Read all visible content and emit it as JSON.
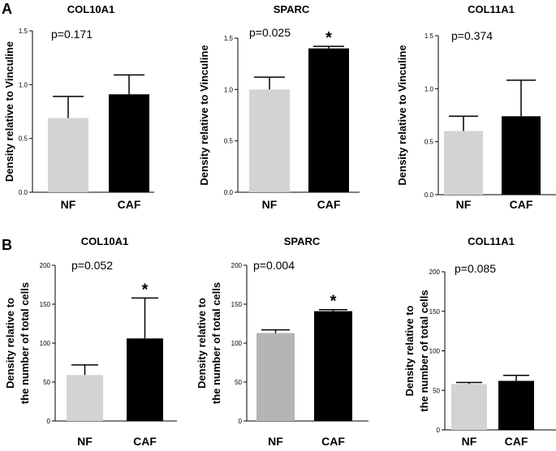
{
  "panels": {
    "a": "A",
    "b": "B"
  },
  "chart_data": [
    {
      "type": "bar",
      "panel": "A",
      "title": "COL10A1",
      "p_value": "p=0.171",
      "ylabel": "Density relative to Vinculine",
      "categories": [
        "NF",
        "CAF"
      ],
      "values": [
        0.69,
        0.91
      ],
      "errors": [
        0.2,
        0.18
      ],
      "colors": [
        "#d3d3d3",
        "#000000"
      ],
      "ylim": [
        0,
        1.5
      ],
      "yticks": [
        "0.0",
        "0.5",
        "1.0",
        "1.5"
      ],
      "tick_values": [
        0,
        0.5,
        1.0,
        1.5
      ],
      "stars": [
        "",
        ""
      ]
    },
    {
      "type": "bar",
      "panel": "A",
      "title": "SPARC",
      "p_value": "p=0.025",
      "ylabel": "Density relative to Vinculine",
      "categories": [
        "NF",
        "CAF"
      ],
      "values": [
        1.0,
        1.4
      ],
      "errors": [
        0.12,
        0.02
      ],
      "colors": [
        "#d3d3d3",
        "#000000"
      ],
      "ylim": [
        0,
        1.5
      ],
      "yticks": [
        "0.0",
        "0.5",
        "1.0",
        "1.5"
      ],
      "tick_values": [
        0,
        0.5,
        1.0,
        1.5
      ],
      "stars": [
        "",
        "*"
      ]
    },
    {
      "type": "bar",
      "panel": "A",
      "title": "COL11A1",
      "p_value": "p=0.374",
      "ylabel": "Density relative to Vinculine",
      "categories": [
        "NF",
        "CAF"
      ],
      "values": [
        0.6,
        0.74
      ],
      "errors": [
        0.14,
        0.34
      ],
      "colors": [
        "#d3d3d3",
        "#000000"
      ],
      "ylim": [
        0,
        1.5
      ],
      "yticks": [
        "0.0",
        "0.5",
        "1.0",
        "1.5"
      ],
      "tick_values": [
        0,
        0.5,
        1.0,
        1.5
      ],
      "stars": [
        "",
        ""
      ]
    },
    {
      "type": "bar",
      "panel": "B",
      "title": "COL10A1",
      "p_value": "p=0.052",
      "ylabel": [
        "Density relative to",
        "the number of total cells"
      ],
      "categories": [
        "NF",
        "CAF"
      ],
      "values": [
        59,
        106
      ],
      "errors": [
        13,
        52
      ],
      "colors": [
        "#d3d3d3",
        "#000000"
      ],
      "ylim": [
        0,
        200
      ],
      "yticks": [
        "0",
        "50",
        "100",
        "150",
        "200"
      ],
      "tick_values": [
        0,
        50,
        100,
        150,
        200
      ],
      "stars": [
        "",
        "*"
      ]
    },
    {
      "type": "bar",
      "panel": "B",
      "title": "SPARC",
      "p_value": "p=0.004",
      "ylabel": [
        "Density relative to",
        "the number of total cells"
      ],
      "categories": [
        "NF",
        "CAF"
      ],
      "values": [
        113,
        141
      ],
      "errors": [
        4,
        2
      ],
      "colors": [
        "#b5b5b5",
        "#000000"
      ],
      "ylim": [
        0,
        200
      ],
      "yticks": [
        "0",
        "50",
        "100",
        "150",
        "200"
      ],
      "tick_values": [
        0,
        50,
        100,
        150,
        200
      ],
      "stars": [
        "",
        "*"
      ]
    },
    {
      "type": "bar",
      "panel": "B",
      "title": "COL11A1",
      "p_value": "p=0.085",
      "ylabel": [
        "Density relative to",
        "the number of total cells"
      ],
      "categories": [
        "NF",
        "CAF"
      ],
      "values": [
        58,
        62
      ],
      "errors": [
        2,
        7
      ],
      "colors": [
        "#d3d3d3",
        "#000000"
      ],
      "ylim": [
        0,
        200
      ],
      "yticks": [
        "0",
        "50",
        "100",
        "150",
        "200"
      ],
      "tick_values": [
        0,
        50,
        100,
        150,
        200
      ],
      "stars": [
        "",
        ""
      ]
    }
  ]
}
